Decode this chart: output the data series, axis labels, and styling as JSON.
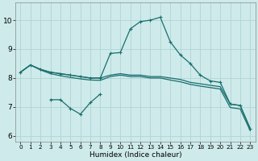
{
  "xlabel": "Humidex (Indice chaleur)",
  "background_color": "#ceeaea",
  "grid_color": "#b0d4d4",
  "line_color": "#1a6e6e",
  "xlim": [
    -0.5,
    23.5
  ],
  "ylim": [
    5.8,
    10.6
  ],
  "xticks": [
    0,
    1,
    2,
    3,
    4,
    5,
    6,
    7,
    8,
    9,
    10,
    11,
    12,
    13,
    14,
    15,
    16,
    17,
    18,
    19,
    20,
    21,
    22,
    23
  ],
  "yticks": [
    6,
    7,
    8,
    9,
    10
  ],
  "line_flat_x": [
    0,
    1,
    2,
    3,
    4,
    5,
    6,
    7,
    8,
    9,
    10,
    11,
    12,
    13,
    14,
    15,
    16,
    17,
    18,
    19,
    20,
    21,
    22,
    23
  ],
  "line_flat_y": [
    8.2,
    8.45,
    8.3,
    8.2,
    8.15,
    8.1,
    8.05,
    8.0,
    8.0,
    8.1,
    8.15,
    8.1,
    8.1,
    8.05,
    8.05,
    8.0,
    7.95,
    7.85,
    7.8,
    7.75,
    7.7,
    7.1,
    7.05,
    6.25
  ],
  "line_flat2_x": [
    0,
    1,
    2,
    3,
    4,
    5,
    6,
    7,
    8,
    9,
    10,
    11,
    12,
    13,
    14,
    15,
    16,
    17,
    18,
    19,
    20,
    21,
    22,
    23
  ],
  "line_flat2_y": [
    8.2,
    8.45,
    8.28,
    8.15,
    8.08,
    8.02,
    7.97,
    7.93,
    7.92,
    8.05,
    8.1,
    8.05,
    8.05,
    8.0,
    8.0,
    7.93,
    7.87,
    7.78,
    7.72,
    7.67,
    7.62,
    6.98,
    6.93,
    6.18
  ],
  "line_small_x": [
    3,
    4,
    5,
    6,
    7,
    8
  ],
  "line_small_y": [
    7.25,
    7.25,
    6.95,
    6.75,
    7.15,
    7.45
  ],
  "line_spike_x": [
    0,
    1,
    2,
    3,
    4,
    5,
    6,
    7,
    8,
    9,
    10,
    11,
    12,
    13,
    14,
    15,
    16,
    17,
    18,
    19,
    20,
    21,
    22,
    23
  ],
  "line_spike_y": [
    8.2,
    8.45,
    8.3,
    8.2,
    8.15,
    8.1,
    8.05,
    8.0,
    8.0,
    8.85,
    8.88,
    9.7,
    9.95,
    10.0,
    10.1,
    9.25,
    8.8,
    8.5,
    8.1,
    7.9,
    7.85,
    7.1,
    7.05,
    6.25
  ]
}
